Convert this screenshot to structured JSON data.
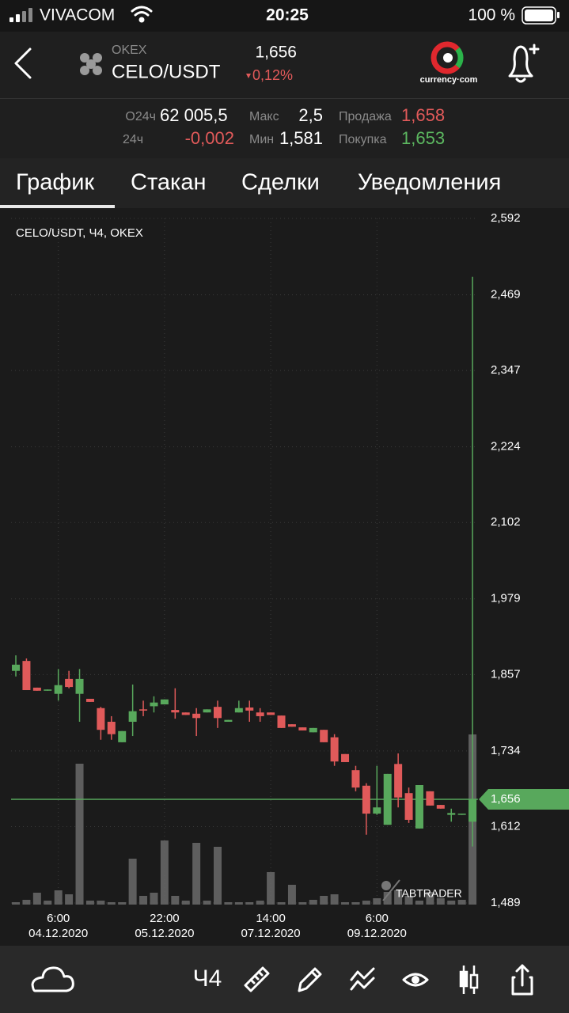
{
  "status_bar": {
    "carrier": "VIVACOM",
    "time": "20:25",
    "battery": "100 %"
  },
  "header": {
    "exchange": "OKEX",
    "pair": "CELO/USDT",
    "price": "1,656",
    "change": "0,12%",
    "logo": "currency·com"
  },
  "stats": [
    [
      {
        "label": "O24ч",
        "value": "62 005,5"
      },
      {
        "label": "Макс",
        "value": "2,5"
      },
      {
        "label": "Продажа",
        "value": "1,658"
      }
    ],
    [
      {
        "label": "24ч",
        "value": "-0,002"
      },
      {
        "label": "Мин",
        "value": "1,581"
      },
      {
        "label": "Покупка",
        "value": "1,653"
      }
    ]
  ],
  "tabs": [
    "График",
    "Стакан",
    "Сделки",
    "Уведомления"
  ],
  "active_tab": 0,
  "toolbar": {
    "interval": "Ч4"
  },
  "chart_data": {
    "type": "candlestick",
    "title": "CELO/USDT, Ч4, OKEX",
    "watermark": "TABTRADER",
    "up_color": "#58a85c",
    "down_color": "#e05a5a",
    "volume_color": "#6a6a6a",
    "categories": [
      null,
      null,
      null,
      null,
      "6:00",
      null,
      null,
      null,
      null,
      null,
      null,
      null,
      null,
      null,
      "22:00",
      null,
      null,
      null,
      null,
      null,
      null,
      null,
      null,
      null,
      "14:00",
      null,
      null,
      null,
      null,
      null,
      null,
      null,
      null,
      null,
      "6:00",
      null,
      null,
      null,
      null,
      null,
      null,
      null,
      null,
      null
    ],
    "category_dates": [
      null,
      null,
      null,
      null,
      "04.12.2020",
      null,
      null,
      null,
      null,
      null,
      null,
      null,
      null,
      null,
      "05.12.2020",
      null,
      null,
      null,
      null,
      null,
      null,
      null,
      null,
      null,
      "07.12.2020",
      null,
      null,
      null,
      null,
      null,
      null,
      null,
      null,
      null,
      "09.12.2020",
      null,
      null,
      null,
      null,
      null,
      null,
      null,
      null,
      null
    ],
    "open": [
      1.863,
      1.879,
      1.836,
      1.831,
      1.826,
      1.85,
      1.826,
      1.818,
      1.803,
      1.781,
      1.748,
      1.781,
      1.801,
      1.806,
      1.809,
      1.8,
      1.796,
      1.794,
      1.796,
      1.805,
      1.781,
      1.796,
      1.804,
      1.796,
      1.796,
      1.791,
      1.777,
      1.772,
      1.764,
      1.768,
      1.756,
      1.729,
      1.703,
      1.678,
      1.633,
      1.615,
      1.713,
      1.666,
      1.609,
      1.669,
      1.647,
      1.631,
      1.631,
      1.62
    ],
    "high": [
      1.888,
      1.883,
      1.836,
      1.833,
      1.866,
      1.863,
      1.866,
      1.818,
      1.805,
      1.79,
      1.766,
      1.841,
      1.815,
      1.822,
      1.817,
      1.835,
      1.796,
      1.803,
      1.801,
      1.815,
      1.784,
      1.815,
      1.815,
      1.803,
      1.796,
      1.791,
      1.777,
      1.772,
      1.771,
      1.768,
      1.761,
      1.729,
      1.71,
      1.682,
      1.71,
      1.697,
      1.73,
      1.675,
      1.679,
      1.669,
      1.647,
      1.641,
      1.633,
      2.498
    ],
    "low": [
      1.854,
      1.832,
      1.831,
      1.831,
      1.815,
      1.835,
      1.781,
      1.813,
      1.752,
      1.752,
      1.748,
      1.758,
      1.79,
      1.796,
      1.809,
      1.786,
      1.792,
      1.758,
      1.796,
      1.771,
      1.781,
      1.796,
      1.781,
      1.781,
      1.792,
      1.771,
      1.773,
      1.767,
      1.764,
      1.748,
      1.71,
      1.716,
      1.669,
      1.599,
      1.631,
      1.615,
      1.643,
      1.618,
      1.609,
      1.646,
      1.641,
      1.62,
      1.631,
      1.58
    ],
    "close": [
      1.873,
      1.832,
      1.831,
      1.833,
      1.84,
      1.837,
      1.85,
      1.813,
      1.768,
      1.761,
      1.766,
      1.798,
      1.799,
      1.812,
      1.817,
      1.796,
      1.792,
      1.787,
      1.801,
      1.787,
      1.784,
      1.803,
      1.799,
      1.79,
      1.792,
      1.771,
      1.773,
      1.767,
      1.771,
      1.748,
      1.717,
      1.716,
      1.675,
      1.633,
      1.643,
      1.697,
      1.659,
      1.623,
      1.679,
      1.646,
      1.641,
      1.634,
      1.633,
      1.656
    ],
    "volume": [
      3,
      6,
      15,
      5,
      18,
      13,
      178,
      5,
      5,
      3,
      3,
      58,
      11,
      15,
      81,
      11,
      5,
      78,
      5,
      73,
      3,
      3,
      3,
      5,
      41,
      3,
      25,
      3,
      6,
      11,
      13,
      3,
      3,
      5,
      8,
      16,
      18,
      11,
      5,
      16,
      8,
      5,
      6,
      215
    ],
    "ylim": [
      1.489,
      2.592
    ],
    "yticks": [
      {
        "value": 2.592,
        "label": "2,592"
      },
      {
        "value": 2.469,
        "label": "2,469"
      },
      {
        "value": 2.347,
        "label": "2,347"
      },
      {
        "value": 2.224,
        "label": "2,224"
      },
      {
        "value": 2.102,
        "label": "2,102"
      },
      {
        "value": 1.979,
        "label": "1,979"
      },
      {
        "value": 1.857,
        "label": "1,857"
      },
      {
        "value": 1.734,
        "label": "1,734"
      },
      {
        "value": 1.612,
        "label": "1,612"
      },
      {
        "value": 1.489,
        "label": "1,489"
      }
    ],
    "last_price": {
      "value": 1.656,
      "label": "1,656"
    },
    "grid": true
  }
}
